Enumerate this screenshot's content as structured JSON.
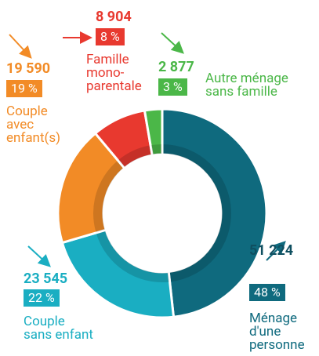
{
  "chart_data": {
    "type": "donut",
    "categories": [
      "Ménage\nd'une\npersonne",
      "Couple\nsans enfant",
      "Couple\navec\nenfant(s)",
      "Famille\nmono-\nparentale",
      "Autre ménage\nsans famille"
    ],
    "values": [
      51224,
      23545,
      19590,
      8904,
      2877
    ],
    "value_labels": [
      "51 224",
      "23 545",
      "19 590",
      "8 904",
      "2 877"
    ],
    "percent": [
      48,
      22,
      19,
      8,
      3
    ],
    "percent_labels": [
      "48 %",
      "22 %",
      "19 %",
      "8 %",
      "3 %"
    ],
    "colors": [
      "#0f6a7e",
      "#1aaec2",
      "#f28b26",
      "#e8392f",
      "#4bb748"
    ]
  }
}
